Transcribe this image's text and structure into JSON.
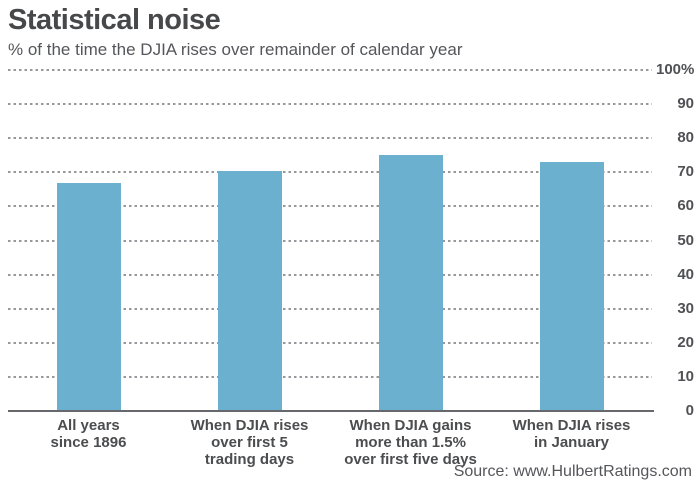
{
  "header": {
    "title": "Statistical noise",
    "subtitle": "% of the time the DJIA rises over remainder of calendar year"
  },
  "footer": {
    "source": "Source: www.HulbertRatings.com"
  },
  "colors": {
    "bar": "#6bb0cf",
    "gridline": "#97989b",
    "baseline": "#67686b",
    "title_text": "#47484a",
    "secondary_text": "#55565a"
  },
  "chart_data": {
    "type": "bar",
    "title": "Statistical noise",
    "subtitle": "% of the time the DJIA rises over remainder of calendar year",
    "categories": [
      [
        "All years",
        "since 1896"
      ],
      [
        "When DJIA rises",
        "over first 5",
        "trading days"
      ],
      [
        "When DJIA gains",
        "more than 1.5%",
        "over first five days"
      ],
      [
        "When DJIA rises",
        "in January"
      ]
    ],
    "categories_flat": [
      "All years since 1896",
      "When DJIA rises over first 5 trading days",
      "When DJIA gains more than 1.5% over first five days",
      "When DJIA rises in January"
    ],
    "values": [
      67,
      70.5,
      75,
      73
    ],
    "unit": "%",
    "ylim": [
      0,
      100
    ],
    "yticks": [
      0,
      10,
      20,
      30,
      40,
      50,
      60,
      70,
      80,
      90,
      100
    ],
    "ytick_labels": [
      "0",
      "10",
      "20",
      "30",
      "40",
      "50",
      "60",
      "70",
      "80",
      "90",
      "100%"
    ],
    "yticks_position": "right",
    "grid": "horizontal-dashed",
    "legend": "none",
    "source": "Source: www.HulbertRatings.com"
  }
}
